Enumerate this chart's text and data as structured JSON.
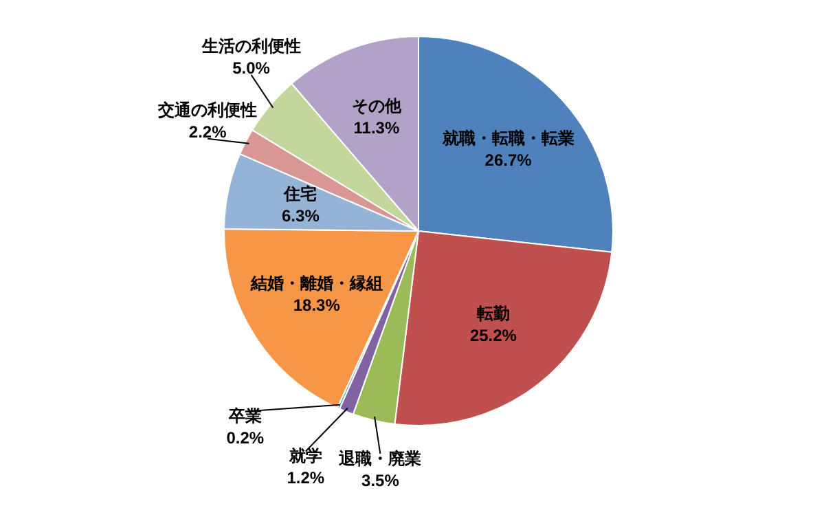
{
  "chart_data": {
    "type": "pie",
    "categories": [
      "就職・転職・転業",
      "転勤",
      "退職・廃業",
      "就学",
      "卒業",
      "結婚・離婚・縁組",
      "住宅",
      "交通の利便性",
      "生活の利便性",
      "その他"
    ],
    "values": [
      26.7,
      25.2,
      3.5,
      1.2,
      0.2,
      18.3,
      6.3,
      2.2,
      5.0,
      11.3
    ],
    "colors": [
      "#4f81bd",
      "#c0504d",
      "#9bbb59",
      "#8064a2",
      "#4bacc6",
      "#f79646",
      "#95b3d7",
      "#d99694",
      "#c3d69b",
      "#b3a2c7"
    ],
    "value_labels": [
      "26.7%",
      "25.2%",
      "3.5%",
      "1.2%",
      "0.2%",
      "18.3%",
      "6.3%",
      "2.2%",
      "5.0%",
      "11.3%"
    ],
    "legend": false
  }
}
